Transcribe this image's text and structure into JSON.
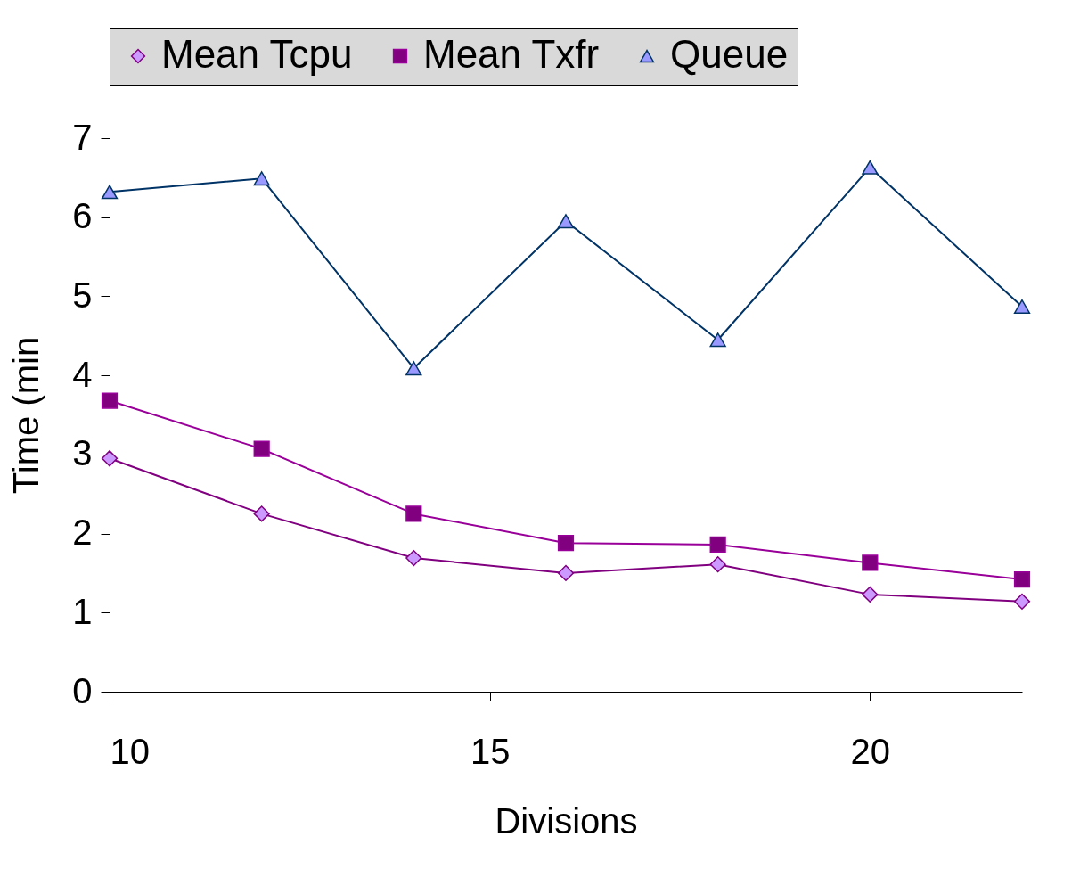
{
  "chart_data": {
    "type": "line",
    "xlabel": "Divisions",
    "ylabel": "Time (min",
    "x": [
      10,
      12,
      14,
      16,
      18,
      20,
      22
    ],
    "xlim": [
      10,
      22
    ],
    "xticks": [
      10,
      15,
      20
    ],
    "ylim": [
      0,
      7
    ],
    "yticks": [
      0,
      1,
      2,
      3,
      4,
      5,
      6,
      7
    ],
    "grid": false,
    "legend": "top",
    "series": [
      {
        "name": "Mean Tcpu",
        "color": "#800080",
        "marker": "diamond",
        "values": [
          2.95,
          2.25,
          1.69,
          1.5,
          1.61,
          1.23,
          1.14
        ]
      },
      {
        "name": "Mean Txfr",
        "color": "#990099",
        "marker": "square",
        "values": [
          3.68,
          3.07,
          2.25,
          1.88,
          1.86,
          1.63,
          1.42
        ]
      },
      {
        "name": "Queue",
        "color": "#003366",
        "marker": "triangle",
        "values": [
          6.32,
          6.49,
          4.09,
          5.95,
          4.45,
          6.63,
          4.87
        ]
      }
    ]
  }
}
